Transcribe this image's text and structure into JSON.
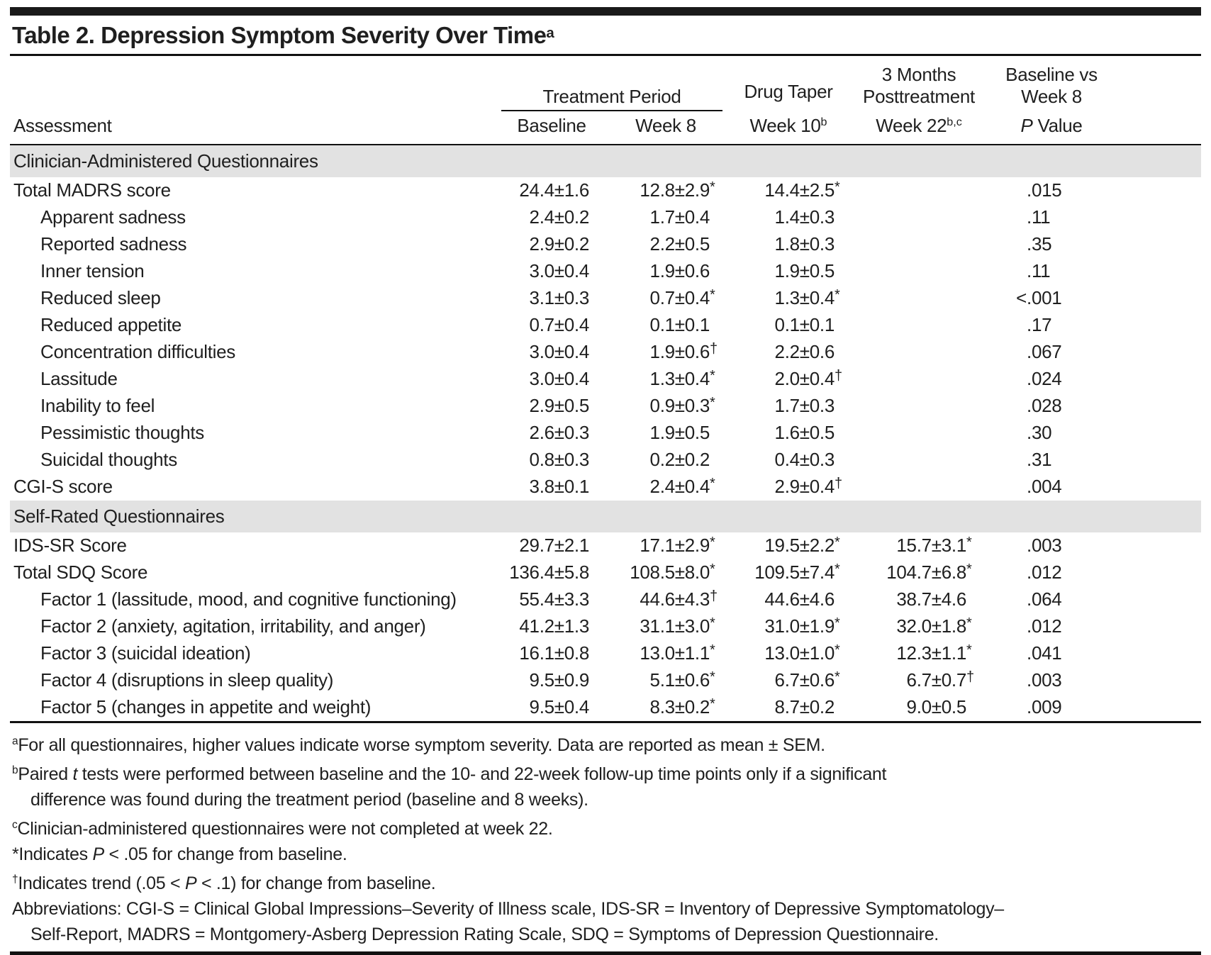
{
  "title": {
    "text": "Table 2. Depression Symptom Severity Over Time",
    "sup": "a"
  },
  "header": {
    "assessment": "Assessment",
    "treatment_period": "Treatment Period",
    "baseline": "Baseline",
    "week8": "Week 8",
    "drug_taper": "Drug Taper",
    "week10": "Week 10",
    "week10_sup": "b",
    "months3": "3 Months",
    "posttreatment": "Posttreatment",
    "week22": "Week 22",
    "week22_sup": "b,c",
    "baseline_vs": "Baseline vs",
    "week8_vs": "Week 8",
    "p_italic": "P",
    "p_rest": " Value"
  },
  "sections": [
    {
      "title": "Clinician-Administered Questionnaires"
    },
    {
      "title": "Self-Rated Questionnaires"
    }
  ],
  "rows": [
    {
      "label": "Total MADRS score",
      "c1": {
        "v": "24.4±1.6",
        "m": ""
      },
      "c2": {
        "v": "12.8±2.9",
        "m": "*"
      },
      "c3": {
        "v": "14.4±2.5",
        "m": "*"
      },
      "c4": {
        "v": "",
        "m": ""
      },
      "p": {
        "pre": "",
        "val": ".015"
      }
    },
    {
      "label": "Apparent sadness",
      "c1": {
        "v": "2.4±0.2",
        "m": ""
      },
      "c2": {
        "v": "1.7±0.4",
        "m": ""
      },
      "c3": {
        "v": "1.4±0.3",
        "m": ""
      },
      "c4": {
        "v": "",
        "m": ""
      },
      "p": {
        "pre": "",
        "val": ".11"
      }
    },
    {
      "label": "Reported sadness",
      "c1": {
        "v": "2.9±0.2",
        "m": ""
      },
      "c2": {
        "v": "2.2±0.5",
        "m": ""
      },
      "c3": {
        "v": "1.8±0.3",
        "m": ""
      },
      "c4": {
        "v": "",
        "m": ""
      },
      "p": {
        "pre": "",
        "val": ".35"
      }
    },
    {
      "label": "Inner tension",
      "c1": {
        "v": "3.0±0.4",
        "m": ""
      },
      "c2": {
        "v": "1.9±0.6",
        "m": ""
      },
      "c3": {
        "v": "1.9±0.5",
        "m": ""
      },
      "c4": {
        "v": "",
        "m": ""
      },
      "p": {
        "pre": "",
        "val": ".11"
      }
    },
    {
      "label": "Reduced sleep",
      "c1": {
        "v": "3.1±0.3",
        "m": ""
      },
      "c2": {
        "v": "0.7±0.4",
        "m": "*"
      },
      "c3": {
        "v": "1.3±0.4",
        "m": "*"
      },
      "c4": {
        "v": "",
        "m": ""
      },
      "p": {
        "pre": "<",
        "val": ".001"
      }
    },
    {
      "label": "Reduced appetite",
      "c1": {
        "v": "0.7±0.4",
        "m": ""
      },
      "c2": {
        "v": "0.1±0.1",
        "m": ""
      },
      "c3": {
        "v": "0.1±0.1",
        "m": ""
      },
      "c4": {
        "v": "",
        "m": ""
      },
      "p": {
        "pre": "",
        "val": ".17"
      }
    },
    {
      "label": "Concentration difficulties",
      "c1": {
        "v": "3.0±0.4",
        "m": ""
      },
      "c2": {
        "v": "1.9±0.6",
        "m": "†"
      },
      "c3": {
        "v": "2.2±0.6",
        "m": ""
      },
      "c4": {
        "v": "",
        "m": ""
      },
      "p": {
        "pre": "",
        "val": ".067"
      }
    },
    {
      "label": "Lassitude",
      "c1": {
        "v": "3.0±0.4",
        "m": ""
      },
      "c2": {
        "v": "1.3±0.4",
        "m": "*"
      },
      "c3": {
        "v": "2.0±0.4",
        "m": "†"
      },
      "c4": {
        "v": "",
        "m": ""
      },
      "p": {
        "pre": "",
        "val": ".024"
      }
    },
    {
      "label": "Inability to feel",
      "c1": {
        "v": "2.9±0.5",
        "m": ""
      },
      "c2": {
        "v": "0.9±0.3",
        "m": "*"
      },
      "c3": {
        "v": "1.7±0.3",
        "m": ""
      },
      "c4": {
        "v": "",
        "m": ""
      },
      "p": {
        "pre": "",
        "val": ".028"
      }
    },
    {
      "label": "Pessimistic thoughts",
      "c1": {
        "v": "2.6±0.3",
        "m": ""
      },
      "c2": {
        "v": "1.9±0.5",
        "m": ""
      },
      "c3": {
        "v": "1.6±0.5",
        "m": ""
      },
      "c4": {
        "v": "",
        "m": ""
      },
      "p": {
        "pre": "",
        "val": ".30"
      }
    },
    {
      "label": "Suicidal thoughts",
      "c1": {
        "v": "0.8±0.3",
        "m": ""
      },
      "c2": {
        "v": "0.2±0.2",
        "m": ""
      },
      "c3": {
        "v": "0.4±0.3",
        "m": ""
      },
      "c4": {
        "v": "",
        "m": ""
      },
      "p": {
        "pre": "",
        "val": ".31"
      }
    },
    {
      "label": "CGI-S score",
      "c1": {
        "v": "3.8±0.1",
        "m": ""
      },
      "c2": {
        "v": "2.4±0.4",
        "m": "*"
      },
      "c3": {
        "v": "2.9±0.4",
        "m": "†"
      },
      "c4": {
        "v": "",
        "m": ""
      },
      "p": {
        "pre": "",
        "val": ".004"
      }
    },
    {
      "label": "IDS-SR Score",
      "c1": {
        "v": "29.7±2.1",
        "m": ""
      },
      "c2": {
        "v": "17.1±2.9",
        "m": "*"
      },
      "c3": {
        "v": "19.5±2.2",
        "m": "*"
      },
      "c4": {
        "v": "15.7±3.1",
        "m": "*"
      },
      "p": {
        "pre": "",
        "val": ".003"
      }
    },
    {
      "label": "Total SDQ Score",
      "c1": {
        "v": "136.4±5.8",
        "m": ""
      },
      "c2": {
        "v": "108.5±8.0",
        "m": "*"
      },
      "c3": {
        "v": "109.5±7.4",
        "m": "*"
      },
      "c4": {
        "v": "104.7±6.8",
        "m": "*"
      },
      "p": {
        "pre": "",
        "val": ".012"
      }
    },
    {
      "label": "Factor 1 (lassitude, mood, and cognitive functioning)",
      "c1": {
        "v": "55.4±3.3",
        "m": ""
      },
      "c2": {
        "v": "44.6±4.3",
        "m": "†"
      },
      "c3": {
        "v": "44.6±4.6",
        "m": ""
      },
      "c4": {
        "v": "38.7±4.6",
        "m": ""
      },
      "p": {
        "pre": "",
        "val": ".064"
      }
    },
    {
      "label": "Factor 2 (anxiety, agitation, irritability, and anger)",
      "c1": {
        "v": "41.2±1.3",
        "m": ""
      },
      "c2": {
        "v": "31.1±3.0",
        "m": "*"
      },
      "c3": {
        "v": "31.0±1.9",
        "m": "*"
      },
      "c4": {
        "v": "32.0±1.8",
        "m": "*"
      },
      "p": {
        "pre": "",
        "val": ".012"
      }
    },
    {
      "label": "Factor 3 (suicidal ideation)",
      "c1": {
        "v": "16.1±0.8",
        "m": ""
      },
      "c2": {
        "v": "13.0±1.1",
        "m": "*"
      },
      "c3": {
        "v": "13.0±1.0",
        "m": "*"
      },
      "c4": {
        "v": "12.3±1.1",
        "m": "*"
      },
      "p": {
        "pre": "",
        "val": ".041"
      }
    },
    {
      "label": "Factor 4 (disruptions in sleep quality)",
      "c1": {
        "v": "9.5±0.9",
        "m": ""
      },
      "c2": {
        "v": "5.1±0.6",
        "m": "*"
      },
      "c3": {
        "v": "6.7±0.6",
        "m": "*"
      },
      "c4": {
        "v": "6.7±0.7",
        "m": "†"
      },
      "p": {
        "pre": "",
        "val": ".003"
      }
    },
    {
      "label": "Factor 5 (changes in appetite and weight)",
      "c1": {
        "v": "9.5±0.4",
        "m": ""
      },
      "c2": {
        "v": "8.3±0.2",
        "m": "*"
      },
      "c3": {
        "v": "8.7±0.2",
        "m": ""
      },
      "c4": {
        "v": "9.0±0.5",
        "m": ""
      },
      "p": {
        "pre": "",
        "val": ".009"
      }
    }
  ],
  "footnotes": {
    "a": {
      "sup": "a",
      "t1": "For all questionnaires, higher values indicate worse symptom severity. Data are reported as mean ± SEM."
    },
    "b": {
      "sup": "b",
      "t1": "Paired ",
      "i1": "t",
      "t2": " tests were performed between baseline and the 10- and 22-week follow-up time points only if a significant"
    },
    "b2": {
      "t1": "difference was found during the treatment period (baseline and 8 weeks)."
    },
    "c": {
      "sup": "c",
      "t1": "Clinician-administered questionnaires were not completed at week 22."
    },
    "asterisk": {
      "pre": "*Indicates ",
      "i1": "P",
      "t2": " < .05 for change from baseline."
    },
    "dagger": {
      "sup": "†",
      "t1": "Indicates trend (.05 < ",
      "i1": "P",
      "t2": " < .1) for change from baseline."
    },
    "abbr1": "Abbreviations: CGI-S = Clinical Global Impressions–Severity of Illness scale, IDS-SR = Inventory of Depressive Symptomatology–",
    "abbr2": "Self-Report, MADRS = Montgomery-Asberg Depression Rating Scale, SDQ = Symptoms of Depression Questionnaire."
  },
  "colors": {
    "text": "#1f1f1f",
    "rule": "#111111",
    "top_bar": "#1a1a1a",
    "section_bg": "#e2e2e2"
  }
}
